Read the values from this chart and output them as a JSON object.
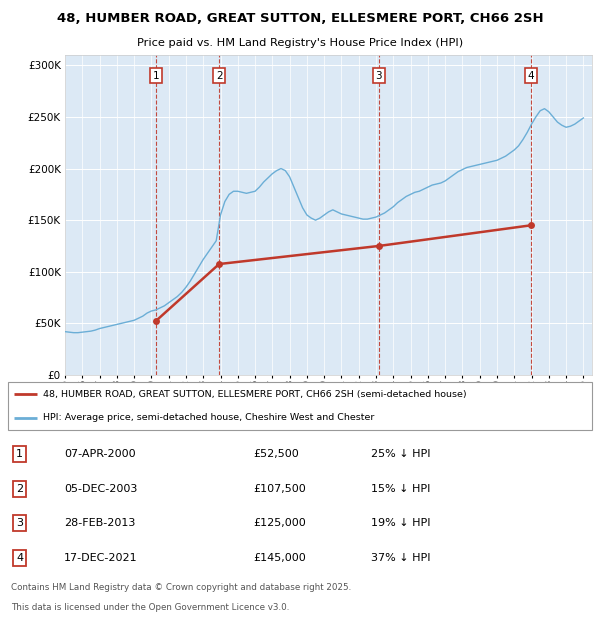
{
  "title_line1": "48, HUMBER ROAD, GREAT SUTTON, ELLESMERE PORT, CH66 2SH",
  "title_line2": "Price paid vs. HM Land Registry's House Price Index (HPI)",
  "ylim": [
    0,
    310000
  ],
  "yticks": [
    0,
    50000,
    100000,
    150000,
    200000,
    250000,
    300000
  ],
  "xlim": [
    1995,
    2025.5
  ],
  "bg_color": "#dce9f5",
  "hpi_color": "#6baed6",
  "price_color": "#c0392b",
  "legend_label_price": "48, HUMBER ROAD, GREAT SUTTON, ELLESMERE PORT, CH66 2SH (semi-detached house)",
  "legend_label_hpi": "HPI: Average price, semi-detached house, Cheshire West and Chester",
  "sales": [
    {
      "num": 1,
      "date": "07-APR-2000",
      "year": 2000.27,
      "price": 52500,
      "pct": "25%",
      "dir": "↓"
    },
    {
      "num": 2,
      "date": "05-DEC-2003",
      "year": 2003.92,
      "price": 107500,
      "pct": "15%",
      "dir": "↓"
    },
    {
      "num": 3,
      "date": "28-FEB-2013",
      "year": 2013.16,
      "price": 125000,
      "pct": "19%",
      "dir": "↓"
    },
    {
      "num": 4,
      "date": "17-DEC-2021",
      "year": 2021.96,
      "price": 145000,
      "pct": "37%",
      "dir": "↓"
    }
  ],
  "footer_line1": "Contains HM Land Registry data © Crown copyright and database right 2025.",
  "footer_line2": "This data is licensed under the Open Government Licence v3.0.",
  "hpi_data_years": [
    1995.0,
    1995.25,
    1995.5,
    1995.75,
    1996.0,
    1996.25,
    1996.5,
    1996.75,
    1997.0,
    1997.25,
    1997.5,
    1997.75,
    1998.0,
    1998.25,
    1998.5,
    1998.75,
    1999.0,
    1999.25,
    1999.5,
    1999.75,
    2000.0,
    2000.25,
    2000.5,
    2000.75,
    2001.0,
    2001.25,
    2001.5,
    2001.75,
    2002.0,
    2002.25,
    2002.5,
    2002.75,
    2003.0,
    2003.25,
    2003.5,
    2003.75,
    2004.0,
    2004.25,
    2004.5,
    2004.75,
    2005.0,
    2005.25,
    2005.5,
    2005.75,
    2006.0,
    2006.25,
    2006.5,
    2006.75,
    2007.0,
    2007.25,
    2007.5,
    2007.75,
    2008.0,
    2008.25,
    2008.5,
    2008.75,
    2009.0,
    2009.25,
    2009.5,
    2009.75,
    2010.0,
    2010.25,
    2010.5,
    2010.75,
    2011.0,
    2011.25,
    2011.5,
    2011.75,
    2012.0,
    2012.25,
    2012.5,
    2012.75,
    2013.0,
    2013.25,
    2013.5,
    2013.75,
    2014.0,
    2014.25,
    2014.5,
    2014.75,
    2015.0,
    2015.25,
    2015.5,
    2015.75,
    2016.0,
    2016.25,
    2016.5,
    2016.75,
    2017.0,
    2017.25,
    2017.5,
    2017.75,
    2018.0,
    2018.25,
    2018.5,
    2018.75,
    2019.0,
    2019.25,
    2019.5,
    2019.75,
    2020.0,
    2020.25,
    2020.5,
    2020.75,
    2021.0,
    2021.25,
    2021.5,
    2021.75,
    2022.0,
    2022.25,
    2022.5,
    2022.75,
    2023.0,
    2023.25,
    2023.5,
    2023.75,
    2024.0,
    2024.25,
    2024.5,
    2024.75,
    2025.0
  ],
  "hpi_data_values": [
    42000,
    41500,
    41000,
    41000,
    41500,
    42000,
    42500,
    43500,
    45000,
    46000,
    47000,
    48000,
    49000,
    50000,
    51000,
    52000,
    53000,
    55000,
    57000,
    60000,
    62000,
    63000,
    65000,
    67000,
    70000,
    73000,
    76000,
    80000,
    85000,
    91000,
    98000,
    105000,
    112000,
    118000,
    124000,
    130000,
    155000,
    168000,
    175000,
    178000,
    178000,
    177000,
    176000,
    177000,
    178000,
    182000,
    187000,
    191000,
    195000,
    198000,
    200000,
    198000,
    192000,
    182000,
    172000,
    162000,
    155000,
    152000,
    150000,
    152000,
    155000,
    158000,
    160000,
    158000,
    156000,
    155000,
    154000,
    153000,
    152000,
    151000,
    151000,
    152000,
    153000,
    155000,
    157000,
    160000,
    163000,
    167000,
    170000,
    173000,
    175000,
    177000,
    178000,
    180000,
    182000,
    184000,
    185000,
    186000,
    188000,
    191000,
    194000,
    197000,
    199000,
    201000,
    202000,
    203000,
    204000,
    205000,
    206000,
    207000,
    208000,
    210000,
    212000,
    215000,
    218000,
    222000,
    228000,
    235000,
    243000,
    250000,
    256000,
    258000,
    255000,
    250000,
    245000,
    242000,
    240000,
    241000,
    243000,
    246000,
    249000
  ]
}
